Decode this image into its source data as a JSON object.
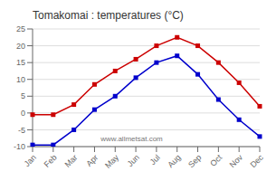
{
  "chart_data": {
    "type": "line",
    "title": "Tomakomai : temperatures (°C)",
    "categories": [
      "Jan",
      "Feb",
      "Mar",
      "Apr",
      "May",
      "Jun",
      "Jul",
      "Aug",
      "Sep",
      "Oct",
      "Nov",
      "Dec"
    ],
    "series": [
      {
        "color": "#cc0000",
        "marker": "square",
        "values": [
          -0.5,
          -0.5,
          2.5,
          8.5,
          12.5,
          16.0,
          20.0,
          22.5,
          20.0,
          15.0,
          9.0,
          2.0
        ]
      },
      {
        "color": "#0000cc",
        "marker": "square",
        "values": [
          -9.5,
          -9.5,
          -5.0,
          1.0,
          5.0,
          10.5,
          15.0,
          17.0,
          11.5,
          4.0,
          -2.0,
          -7.0
        ]
      }
    ],
    "ylim": [
      -10,
      25
    ],
    "yticks": [
      -10,
      -5,
      0,
      5,
      10,
      15,
      20,
      25
    ],
    "grid": true,
    "annotations": [
      "www.allmetsat.com"
    ]
  }
}
